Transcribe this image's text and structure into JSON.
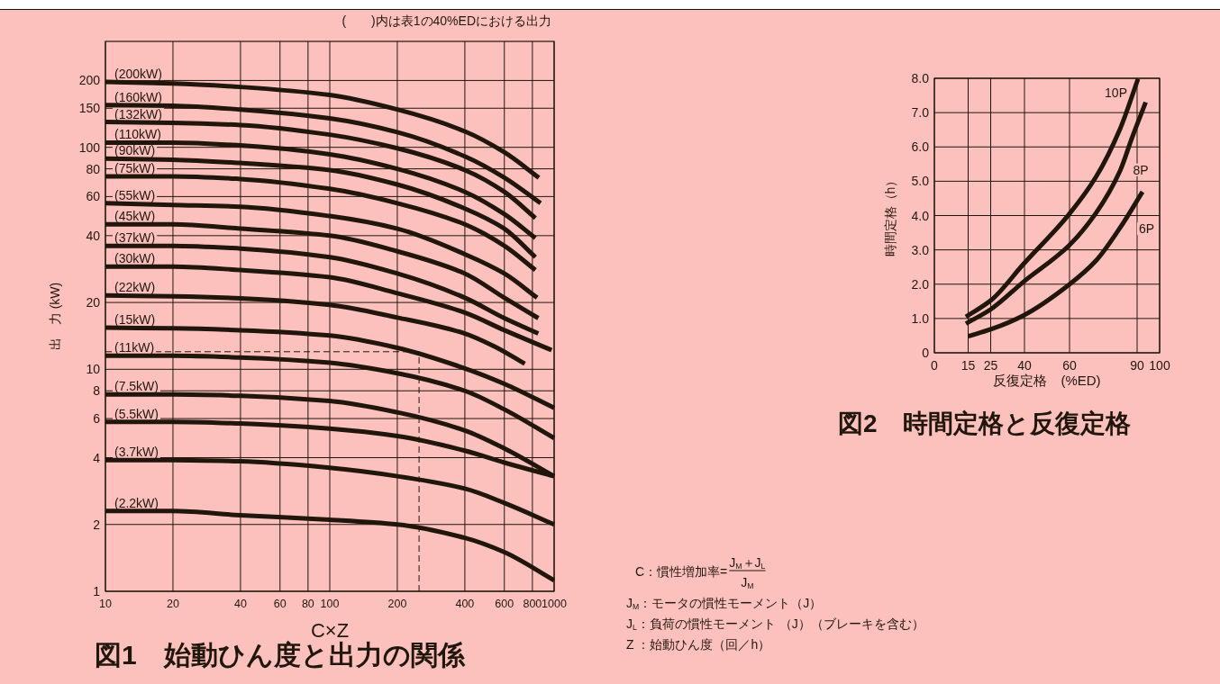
{
  "chart_data": [
    {
      "type": "line",
      "title": "図1　始動ひん度と出力の関係",
      "subtitle": "(　　)内は表1の40%EDにおける出力",
      "xlabel": "C×Z",
      "ylabel": "出　力 (kW)",
      "log": "xy",
      "grid": true,
      "legend": false,
      "xlim": [
        10,
        1000
      ],
      "ylim": [
        1,
        300
      ],
      "xticks": [
        10,
        20,
        40,
        60,
        80,
        100,
        200,
        400,
        600,
        800,
        1000
      ],
      "yticks": [
        1,
        2,
        4,
        6,
        8,
        10,
        20,
        40,
        60,
        80,
        100,
        150,
        200
      ],
      "ref_lines": [
        {
          "axis": "y",
          "value": 12,
          "line_style": "dashed"
        },
        {
          "axis": "x",
          "value": 250,
          "line_style": "dashed"
        }
      ],
      "annotations": [
        "C：慣性増加率=",
        "J$_{M}$＋J$_{L}$",
        "J$_{M}$",
        "J$_{M}$：モータの慣性モーメント（J）",
        "J$_{L}$：負荷の慣性モーメント （J）（ブレーキを含む）",
        "Z ：始動ひん度（回／h）"
      ],
      "series": [
        {
          "name": "(200kW)",
          "color": "#21160c",
          "x": [
            10,
            20,
            40,
            100,
            200,
            400,
            600,
            855
          ],
          "values": [
            197,
            194,
            187,
            172,
            148,
            118,
            95,
            73
          ]
        },
        {
          "name": "(160kW)",
          "color": "#21160c",
          "x": [
            10,
            20,
            40,
            100,
            200,
            400,
            600,
            870
          ],
          "values": [
            155,
            154,
            148,
            135,
            117,
            91,
            73,
            56
          ]
        },
        {
          "name": "(132kW)",
          "color": "#21160c",
          "x": [
            10,
            20,
            40,
            100,
            200,
            400,
            600,
            825
          ],
          "values": [
            130,
            129,
            126,
            114,
            99,
            79,
            63,
            48
          ]
        },
        {
          "name": "(110kW)",
          "color": "#21160c",
          "x": [
            10,
            20,
            40,
            100,
            200,
            400,
            600,
            825
          ],
          "values": [
            105,
            105,
            102,
            93,
            80,
            63,
            50,
            39
          ]
        },
        {
          "name": "(90kW)",
          "color": "#21160c",
          "x": [
            10,
            20,
            40,
            100,
            200,
            400,
            600,
            825
          ],
          "values": [
            89,
            88,
            85,
            79,
            68,
            53,
            43,
            32
          ]
        },
        {
          "name": "(75kW)",
          "color": "#21160c",
          "x": [
            10,
            20,
            40,
            100,
            200,
            400,
            600,
            825
          ],
          "values": [
            74,
            74,
            72,
            65,
            56,
            45,
            36,
            28
          ]
        },
        {
          "name": "(55kW)",
          "color": "#21160c",
          "x": [
            10,
            20,
            40,
            100,
            200,
            400,
            600,
            840
          ],
          "values": [
            56,
            55,
            54,
            49,
            43,
            33,
            27,
            21
          ]
        },
        {
          "name": "(45kW)",
          "color": "#21160c",
          "x": [
            10,
            20,
            40,
            100,
            200,
            400,
            600,
            850
          ],
          "values": [
            45,
            45,
            43,
            40,
            34,
            27,
            21,
            17
          ]
        },
        {
          "name": "(37kW)",
          "color": "#21160c",
          "x": [
            10,
            20,
            40,
            100,
            200,
            400,
            600,
            850
          ],
          "values": [
            36,
            36,
            35,
            32,
            27,
            21,
            17,
            14.5
          ]
        },
        {
          "name": "(30kW)",
          "color": "#21160c",
          "x": [
            10,
            20,
            40,
            100,
            200,
            400,
            600,
            975
          ],
          "values": [
            29,
            29,
            28,
            26,
            22,
            18,
            15,
            12.2
          ]
        },
        {
          "name": "(22kW)",
          "color": "#21160c",
          "x": [
            10,
            20,
            40,
            100,
            200,
            400,
            540,
            740
          ],
          "values": [
            21.5,
            21.3,
            20.9,
            19.5,
            17.1,
            14.5,
            12.7,
            10.6
          ]
        },
        {
          "name": "(15kW)",
          "color": "#21160c",
          "x": [
            10,
            20,
            40,
            100,
            200,
            400,
            600,
            1000
          ],
          "values": [
            15.4,
            15.3,
            15,
            14.2,
            12.5,
            10.1,
            8.6,
            6.7
          ]
        },
        {
          "name": "(11kW)",
          "color": "#21160c",
          "x": [
            10,
            20,
            40,
            100,
            200,
            400,
            600,
            1000
          ],
          "values": [
            11.5,
            11.5,
            11.3,
            10.7,
            9.6,
            8,
            6.6,
            4.9
          ]
        },
        {
          "name": "(7.5kW)",
          "color": "#21160c",
          "x": [
            10,
            20,
            40,
            100,
            200,
            400,
            600,
            1000
          ],
          "values": [
            7.7,
            7.7,
            7.6,
            7.2,
            6.4,
            5.3,
            4.4,
            3.3
          ]
        },
        {
          "name": "(5.5kW)",
          "color": "#21160c",
          "x": [
            10,
            20,
            40,
            100,
            200,
            400,
            600,
            1000
          ],
          "values": [
            5.8,
            5.8,
            5.7,
            5.4,
            5,
            4.3,
            3.8,
            3.3
          ]
        },
        {
          "name": "(3.7kW)",
          "color": "#21160c",
          "x": [
            10,
            20,
            40,
            100,
            200,
            400,
            600,
            1000
          ],
          "values": [
            3.9,
            3.9,
            3.85,
            3.6,
            3.3,
            2.9,
            2.5,
            2
          ]
        },
        {
          "name": "(2.2kW)",
          "color": "#21160c",
          "x": [
            10,
            20,
            40,
            100,
            200,
            400,
            600,
            1000
          ],
          "values": [
            2.3,
            2.3,
            2.2,
            2.1,
            2,
            1.74,
            1.5,
            1.12
          ]
        }
      ]
    },
    {
      "type": "line",
      "title": "図2　時間定格と反復定格",
      "xlabel": "反復定格　(%ED)",
      "ylabel": "時間定格（h）",
      "grid": true,
      "legend": false,
      "xlim": [
        0,
        100
      ],
      "ylim": [
        0,
        8
      ],
      "xticks": [
        0,
        15,
        25,
        40,
        60,
        90,
        100
      ],
      "yticks": [
        0,
        {
          "value": 1,
          "label": "1.0"
        },
        {
          "value": 2,
          "label": "2.0"
        },
        {
          "value": 3,
          "label": "3.0"
        },
        {
          "value": 4,
          "label": "4.0"
        },
        {
          "value": 5,
          "label": "5.0"
        },
        {
          "value": 6,
          "label": "6.0"
        },
        {
          "value": 7,
          "label": "7.0"
        },
        {
          "value": 8,
          "label": "8.0"
        }
      ],
      "series": [
        {
          "name": "10P",
          "color": "#21160c",
          "x": [
            14,
            25.3,
            39.6,
            59.7,
            71.7,
            82.4,
            90.4
          ],
          "values": [
            1.05,
            1.54,
            2.59,
            4.03,
            5.12,
            6.52,
            7.98
          ]
        },
        {
          "name": "8P",
          "color": "#21160c",
          "x": [
            14,
            25.3,
            39.6,
            59.7,
            71.7,
            82.4,
            87.7,
            93.8
          ],
          "values": [
            0.85,
            1.28,
            2.07,
            3.12,
            4.07,
            5.3,
            6.26,
            7.3
          ]
        },
        {
          "name": "6P",
          "color": "#21160c",
          "x": [
            15,
            25.3,
            39.6,
            59.7,
            71.7,
            82.4,
            92.4
          ],
          "values": [
            0.48,
            0.69,
            1.09,
            1.98,
            2.68,
            3.64,
            4.69
          ]
        }
      ]
    }
  ]
}
